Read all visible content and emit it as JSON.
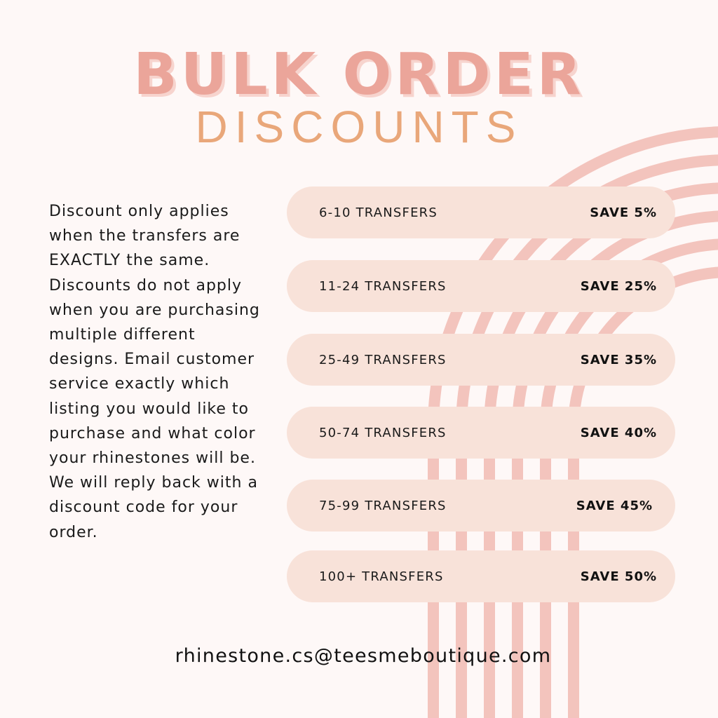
{
  "header": {
    "title": "BULK ORDER",
    "subtitle": "DISCOUNTS"
  },
  "description": "Discount only applies when the transfers are EXACTLY the same. Discounts do not apply when you are purchasing multiple different designs. Email customer service exactly which listing you would like to purchase and what color your rhinestones will be. We will reply back with a discount code for your order.",
  "tiers": [
    {
      "quantity": "6-10 TRANSFERS",
      "discount": "SAVE 5%"
    },
    {
      "quantity": "11-24 TRANSFERS",
      "discount": "SAVE 25%"
    },
    {
      "quantity": "25-49 TRANSFERS",
      "discount": "SAVE 35%"
    },
    {
      "quantity": "50-74 TRANSFERS",
      "discount": "SAVE 40%"
    },
    {
      "quantity": "75-99 TRANSFERS",
      "discount": "SAVE 45%"
    },
    {
      "quantity": "100+ TRANSFERS",
      "discount": "SAVE 50%"
    }
  ],
  "contact": {
    "email": "rhinestone.cs@teesmeboutique.com"
  },
  "colors": {
    "background": "#fef8f7",
    "title": "#eba59a",
    "subtitle": "#e9a77a",
    "pill": "#f8e2d9",
    "arcs": "#f3c4bd"
  }
}
